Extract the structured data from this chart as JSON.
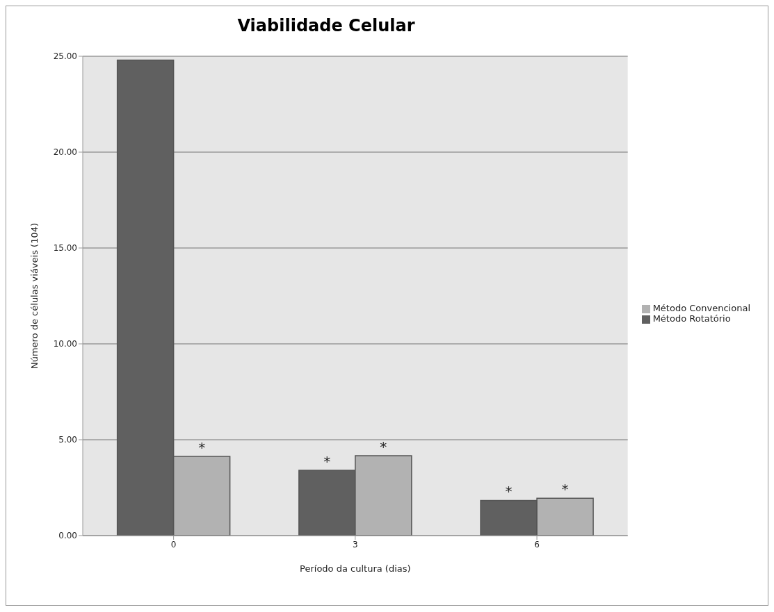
{
  "chart_data": {
    "type": "bar",
    "title": "Viabilidade Celular",
    "xlabel": "Período da cultura (dias)",
    "ylabel": "Número de células viáveis (104)",
    "categories": [
      "0",
      "3",
      "6"
    ],
    "series": [
      {
        "name": "Método Rotatório",
        "color": "#606060",
        "values": [
          24.8,
          3.41,
          1.83
        ],
        "value_labels": [
          null,
          "*",
          "*"
        ]
      },
      {
        "name": "Método Convencional",
        "color": "#b2b2b2",
        "values": [
          4.13,
          4.17,
          1.95
        ],
        "value_labels": [
          "*",
          "*",
          "*"
        ]
      }
    ],
    "ylim": [
      0,
      25
    ],
    "yticks": [
      {
        "value": 0,
        "label": "0.00"
      },
      {
        "value": 5,
        "label": "5.00"
      },
      {
        "value": 10,
        "label": "10.00"
      },
      {
        "value": 15,
        "label": "15.00"
      },
      {
        "value": 20,
        "label": "20.00"
      },
      {
        "value": 25,
        "label": "25.00"
      }
    ],
    "grid": "y",
    "legend": "right"
  }
}
